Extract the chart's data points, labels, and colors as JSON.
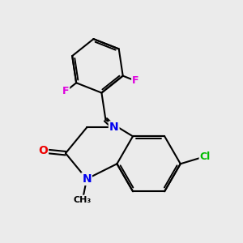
{
  "bg_color": "#ebebeb",
  "bond_color": "#000000",
  "bond_width": 1.5,
  "atom_colors": {
    "N": "#0000ee",
    "O": "#ee0000",
    "F": "#dd00dd",
    "Cl": "#00bb00",
    "C": "#000000"
  },
  "font_size": 9
}
